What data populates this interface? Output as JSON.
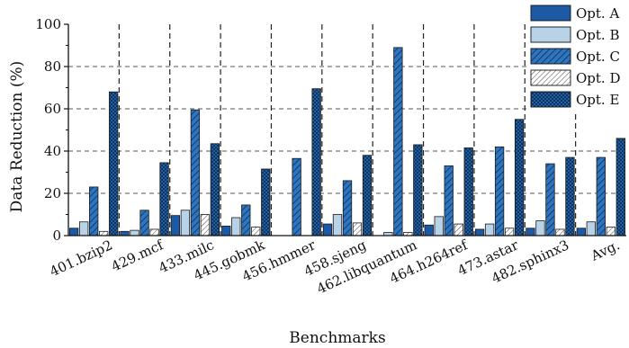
{
  "chart_data": {
    "type": "bar",
    "xlabel": "Benchmarks",
    "ylabel": "Data Reduction (%)",
    "ylim": [
      0,
      100
    ],
    "yticks": [
      "0",
      "20",
      "40",
      "60",
      "80",
      "100"
    ],
    "grid": "dashed vertical separators between benchmarks, dashed horizontal lines at 20/40/60/80",
    "legend": "top-right",
    "categories": [
      "401.bzip2",
      "429.mcf",
      "433.milc",
      "445.gobmk",
      "456.hmmer",
      "458.sjeng",
      "462.libquantum",
      "464.h264ref",
      "473.astar",
      "482.sphinx3",
      "Avg."
    ],
    "series": [
      {
        "name": "Opt. A",
        "style": "solid",
        "color": "#1d5aa6",
        "values": [
          3.5,
          2,
          9.5,
          4.5,
          0,
          5.5,
          0,
          5,
          3,
          3.5,
          3.5
        ]
      },
      {
        "name": "Opt. B",
        "style": "solid",
        "color": "#b8d2e8",
        "values": [
          6.5,
          2.5,
          12,
          8.5,
          0,
          10,
          1.5,
          9,
          5.5,
          7,
          6.5
        ]
      },
      {
        "name": "Opt. C",
        "style": "hatch",
        "color": "#2f75be",
        "values": [
          23,
          12,
          59.5,
          14.5,
          36.5,
          26,
          89,
          33,
          42,
          34,
          37
        ]
      },
      {
        "name": "Opt. D",
        "style": "hatch",
        "color": "#ffffff",
        "values": [
          2,
          3,
          10,
          4,
          0,
          6,
          1.5,
          5.5,
          3.5,
          3,
          4
        ]
      },
      {
        "name": "Opt. E",
        "style": "crosshatch",
        "color": "#2a6eb5",
        "values": [
          68,
          34.5,
          43.5,
          31.5,
          69.5,
          38,
          43,
          41.5,
          55,
          37,
          46
        ]
      }
    ]
  }
}
